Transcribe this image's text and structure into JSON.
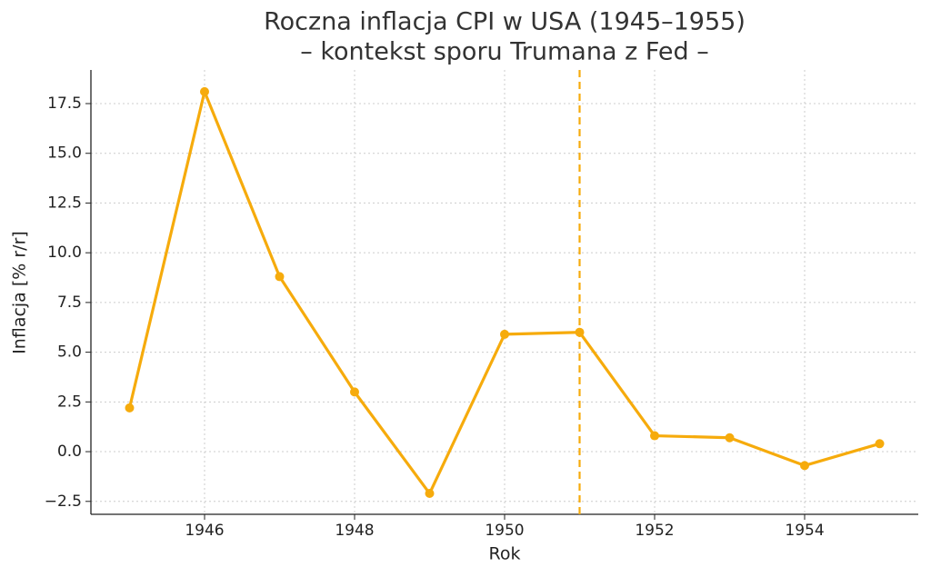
{
  "chart_data": {
    "type": "line",
    "title": [
      "Roczna inflacja CPI w USA (1945–1955)",
      "– kontekst sporu Trumana z Fed –"
    ],
    "x_label": "Rok",
    "y_label": "Inflacja [% r/r]",
    "x": [
      1945,
      1946,
      1947,
      1948,
      1949,
      1950,
      1951,
      1952,
      1953,
      1954,
      1955
    ],
    "series": [
      {
        "color": "#f6ab0c",
        "values": [
          2.2,
          18.1,
          8.8,
          3.0,
          -2.1,
          5.9,
          6.0,
          0.8,
          0.7,
          -0.7,
          0.4
        ]
      }
    ],
    "xlim": [
      1944.485,
      1955.515
    ],
    "ylim": [
      -3.15,
      19.19
    ],
    "xticks": [
      1946,
      1948,
      1950,
      1952,
      1954
    ],
    "yticks": [
      {
        "value": -2.5,
        "label": "−2.5"
      },
      {
        "value": 0,
        "label": "0.0"
      },
      2.5,
      {
        "value": 5,
        "label": "5.0"
      },
      7.5,
      {
        "value": 10,
        "label": "10.0"
      },
      12.5,
      {
        "value": 15,
        "label": "15.0"
      },
      17.5
    ],
    "vline": {
      "x": 1951,
      "color": "#f6ab0c",
      "style": "dashed"
    },
    "grid": true
  }
}
